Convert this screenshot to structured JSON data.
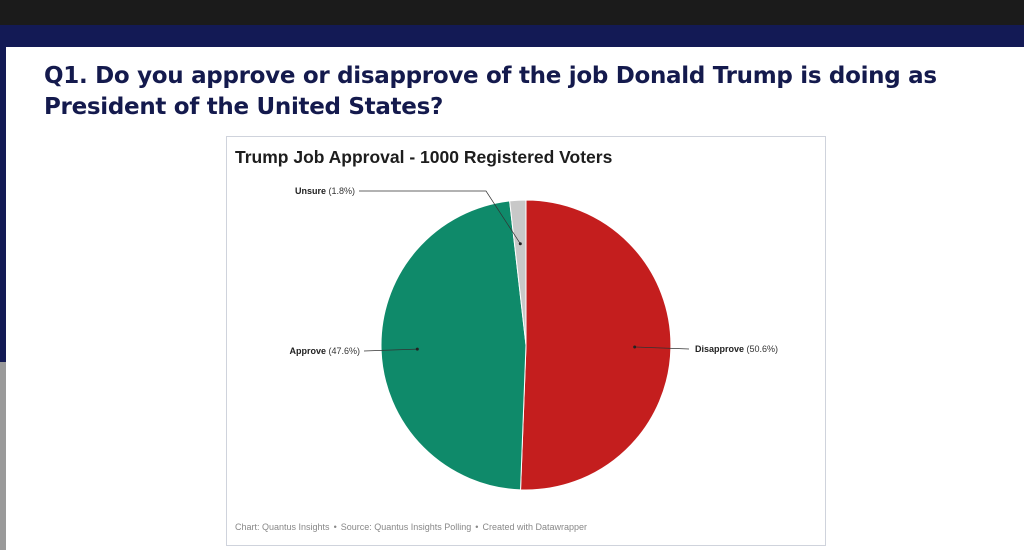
{
  "question": "Q1. Do you approve or disapprove of the job Donald Trump is doing as President of the United States?",
  "chart_data": {
    "type": "pie",
    "title": "Trump Job Approval - 1000 Registered Voters",
    "slices": [
      {
        "name": "Disapprove",
        "value": 50.6,
        "label": "(50.6%)",
        "color": "#c41e1e"
      },
      {
        "name": "Approve",
        "value": 47.6,
        "label": "(47.6%)",
        "color": "#0f8a6a"
      },
      {
        "name": "Unsure",
        "value": 1.8,
        "label": "(1.8%)",
        "color": "#c8c8c8"
      }
    ],
    "footer": {
      "chart": "Chart: Quantus Insights",
      "source": "Source: Quantus Insights Polling",
      "created": "Created with Datawrapper"
    }
  }
}
